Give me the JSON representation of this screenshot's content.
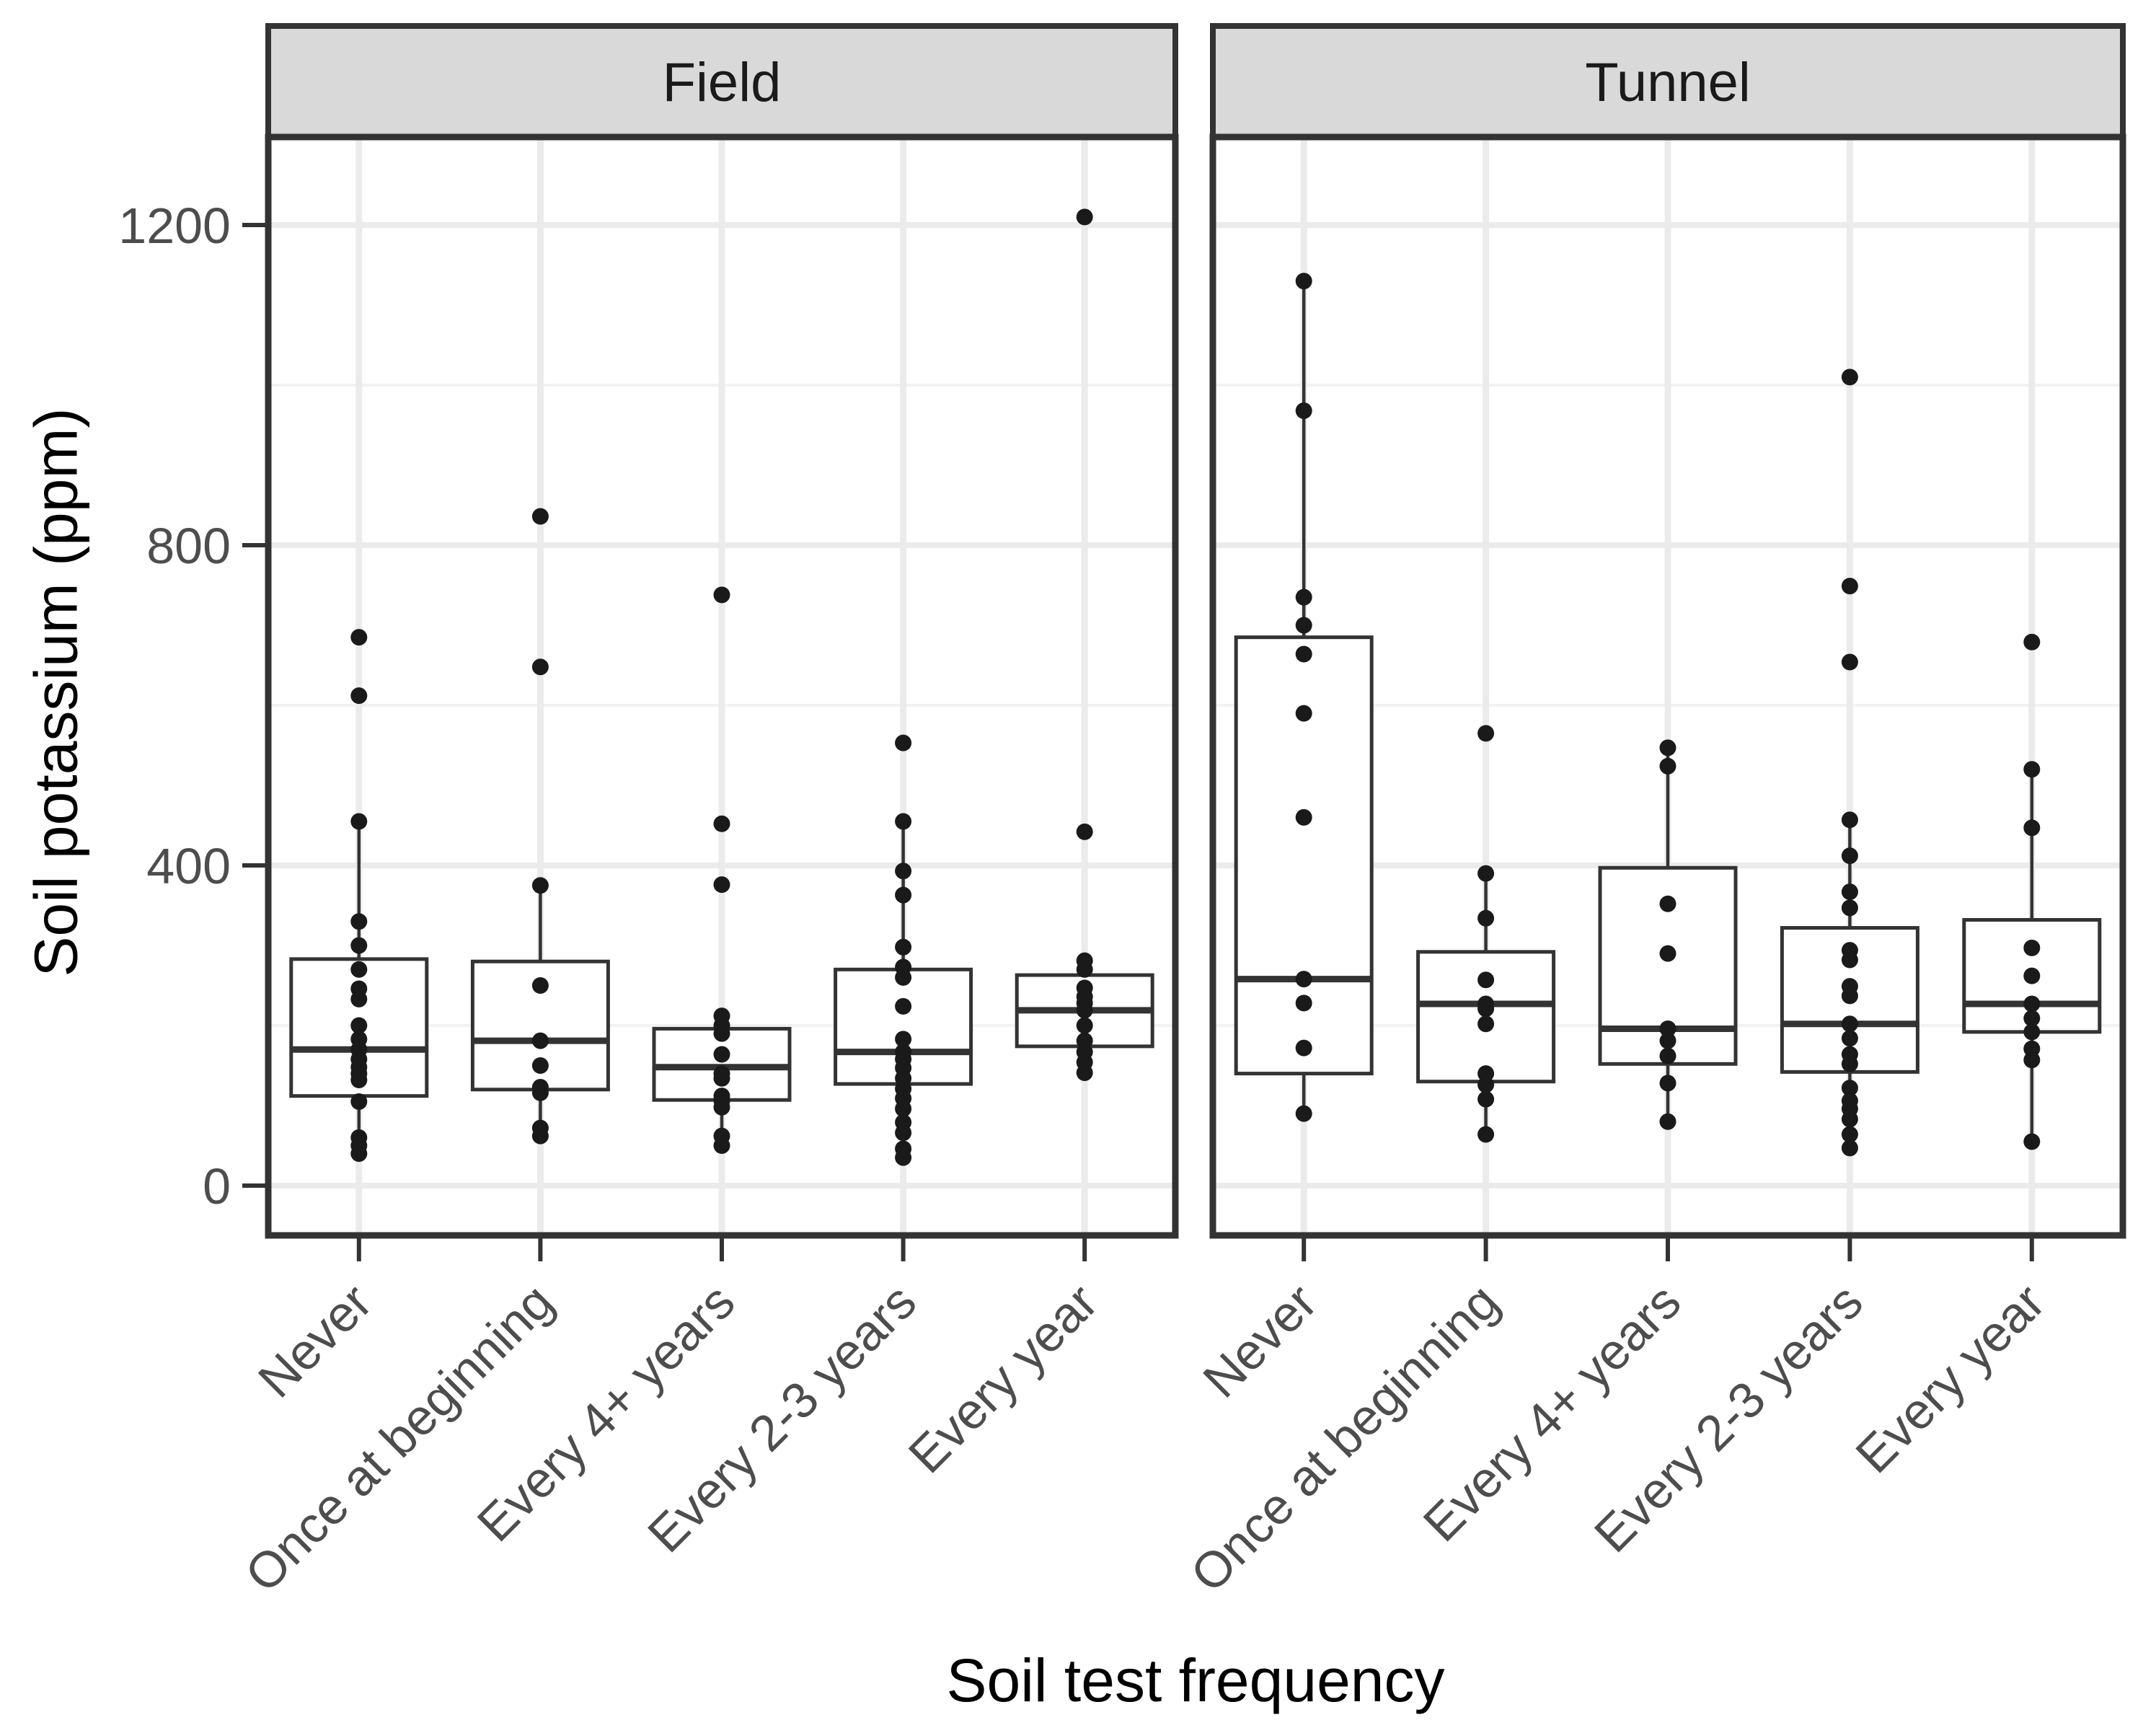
{
  "chart_data": {
    "type": "boxplot",
    "title": "",
    "xlabel": "Soil test frequency",
    "ylabel": "Soil potassium (ppm)",
    "categories": [
      "Never",
      "Once at beginning",
      "Every 4+ years",
      "Every 2-3 years",
      "Every year"
    ],
    "y_ticks": [
      0,
      400,
      800,
      1200
    ],
    "y_minor_gridlines": [
      200,
      600,
      1000
    ],
    "ylim": [
      -60,
      1310
    ],
    "grid": true,
    "legend_position": "none",
    "facets": [
      {
        "label": "Field",
        "groups": [
          {
            "category": "Never",
            "stats": {
              "lo": 40,
              "q1": 112,
              "med": 170,
              "q3": 283,
              "hi": 455
            },
            "points": [
              685,
              612,
              455,
              330,
              300,
              270,
              246,
              233,
              200,
              183,
              170,
              158,
              148,
              140,
              132,
              105,
              60,
              50,
              40
            ]
          },
          {
            "category": "Once at beginning",
            "stats": {
              "lo": 62,
              "q1": 120,
              "med": 181,
              "q3": 280,
              "hi": 375
            },
            "points": [
              836,
              648,
              375,
              250,
              181,
              150,
              123,
              116,
              72,
              62
            ]
          },
          {
            "category": "Every 4+ years",
            "stats": {
              "lo": 50,
              "q1": 107,
              "med": 148,
              "q3": 196,
              "hi": 212
            },
            "points": [
              738,
              452,
              376,
              212,
              200,
              190,
              164,
              140,
              134,
              112,
              106,
              98,
              62,
              50
            ]
          },
          {
            "category": "Every 2-3 years",
            "stats": {
              "lo": 35,
              "q1": 127,
              "med": 167,
              "q3": 270,
              "hi": 455
            },
            "points": [
              553,
              455,
              393,
              363,
              298,
              273,
              260,
              224,
              183,
              167,
              158,
              147,
              134,
              121,
              109,
              96,
              79,
              66,
              46,
              35
            ]
          },
          {
            "category": "Every year",
            "stats": {
              "lo": 140,
              "q1": 174,
              "med": 219,
              "q3": 263,
              "hi": 281
            },
            "points": [
              1210,
              442,
              281,
              270,
              247,
              236,
              228,
              219,
              200,
              181,
              167,
              154,
              141
            ]
          }
        ]
      },
      {
        "label": "Tunnel",
        "groups": [
          {
            "category": "Never",
            "stats": {
              "lo": 90,
              "q1": 140,
              "med": 258,
              "q3": 685,
              "hi": 1130
            },
            "points": [
              1130,
              968,
              735,
              700,
              664,
              590,
              460,
              258,
              228,
              172,
              90
            ]
          },
          {
            "category": "Once at beginning",
            "stats": {
              "lo": 64,
              "q1": 130,
              "med": 227,
              "q3": 292,
              "hi": 390
            },
            "points": [
              565,
              390,
              334,
              257,
              227,
              221,
              202,
              140,
              126,
              108,
              64
            ]
          },
          {
            "category": "Every 4+ years",
            "stats": {
              "lo": 80,
              "q1": 152,
              "med": 196,
              "q3": 397,
              "hi": 547
            },
            "points": [
              547,
              524,
              352,
              290,
              196,
              181,
              162,
              128,
              80
            ]
          },
          {
            "category": "Every 2-3 years",
            "stats": {
              "lo": 64,
              "q1": 142,
              "med": 202,
              "q3": 322,
              "hi": 457
            },
            "points": [
              1010,
              749,
              654,
              457,
              412,
              367,
              347,
              294,
              282,
              249,
              237,
              202,
              184,
              164,
              152,
              122,
              106,
              96,
              83,
              64,
              47
            ]
          },
          {
            "category": "Every year",
            "stats": {
              "lo": 55,
              "q1": 192,
              "med": 227,
              "q3": 332,
              "hi": 520
            },
            "points": [
              679,
              520,
              447,
              297,
              262,
              227,
              209,
              192,
              171,
              157,
              55
            ]
          }
        ]
      }
    ],
    "colors": {
      "background": "#FFFFFF",
      "panel_border": "#333333",
      "strip_background": "#D9D9D9",
      "strip_border": "#333333",
      "strip_text": "#1A1A1A",
      "grid_major": "#EBEBEB",
      "grid_minor": "#F2F2F2",
      "box_stroke": "#333333",
      "box_fill": "#FFFFFF",
      "point_fill": "#1A1A1A",
      "axis_text": "#4D4D4D",
      "axis_tick": "#333333"
    }
  }
}
